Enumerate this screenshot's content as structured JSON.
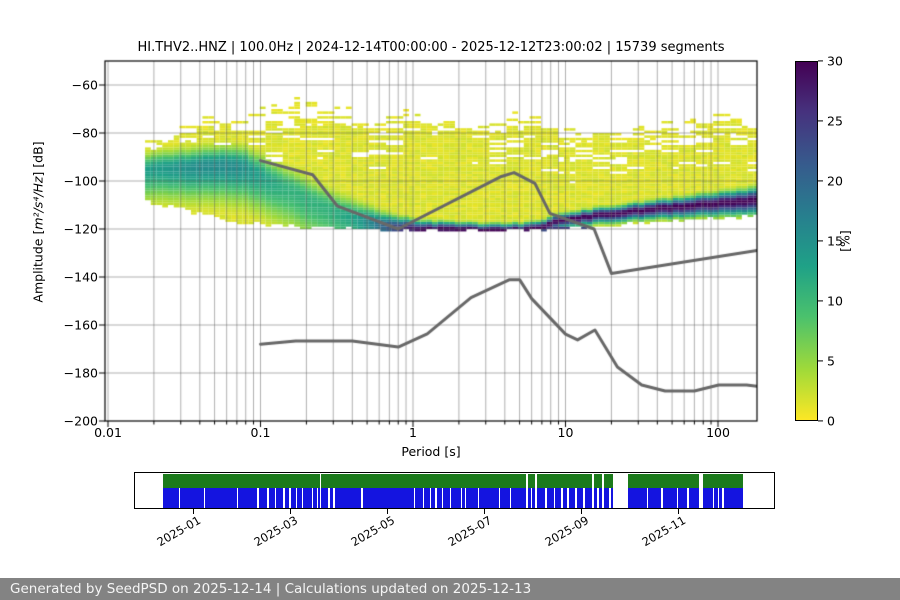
{
  "header": {
    "title": "HI.THV2..HNZ | 100.0Hz | 2024-12-14T00:00:00 - 2025-12-12T23:00:02 | 15739 segments"
  },
  "chart_data": {
    "type": "heatmap",
    "subtype": "probabilistic-power-spectral-density",
    "title": "HI.THV2..HNZ | 100.0Hz | 2024-12-14T00:00:00 - 2025-12-12T23:00:02 | 15739 segments",
    "xlabel": "Period [s]",
    "ylabel": "Amplitude [m²/s⁴/Hz] [dB]",
    "ylabel_parts": [
      "Amplitude [",
      "m²/s⁴/Hz",
      "] [dB]"
    ],
    "x_scale": "log",
    "xlim": [
      0.0096,
      180
    ],
    "ylim": [
      -200,
      -50
    ],
    "grid": true,
    "x_ticks": [
      {
        "value": 0.01,
        "label": "0.01"
      },
      {
        "value": 0.1,
        "label": "0.1"
      },
      {
        "value": 1,
        "label": "1"
      },
      {
        "value": 10,
        "label": "10"
      },
      {
        "value": 100,
        "label": "100"
      }
    ],
    "y_ticks": [
      {
        "value": -60,
        "label": "−60"
      },
      {
        "value": -80,
        "label": "−80"
      },
      {
        "value": -100,
        "label": "−100"
      },
      {
        "value": -120,
        "label": "−120"
      },
      {
        "value": -140,
        "label": "−140"
      },
      {
        "value": -160,
        "label": "−160"
      },
      {
        "value": -180,
        "label": "−180"
      },
      {
        "value": -200,
        "label": "−200"
      }
    ],
    "colorbar": {
      "label": "[%]",
      "ticks": [
        0,
        5,
        10,
        15,
        20,
        25,
        30
      ],
      "range": [
        0,
        30
      ],
      "colormap": "viridis_r"
    },
    "psd_distribution": {
      "period_bins_per_octave": 8,
      "period_range_s": [
        0.0175,
        180
      ],
      "db_bin_width": 1,
      "mode_db": [
        [
          0.0175,
          -95.5
        ],
        [
          0.035,
          -94.5
        ],
        [
          0.055,
          -93.8
        ],
        [
          0.08,
          -95
        ],
        [
          0.1,
          -98
        ],
        [
          0.15,
          -103.5
        ],
        [
          0.22,
          -109
        ],
        [
          0.32,
          -113.5
        ],
        [
          0.5,
          -117.3
        ],
        [
          0.7,
          -119.3
        ],
        [
          1,
          -120.3
        ],
        [
          2,
          -120.8
        ],
        [
          5,
          -120.9
        ],
        [
          7,
          -119.8
        ],
        [
          9,
          -117.2
        ],
        [
          12,
          -115.8
        ],
        [
          18,
          -114.3
        ],
        [
          30,
          -112.8
        ],
        [
          50,
          -111.5
        ],
        [
          80,
          -110.3
        ],
        [
          120,
          -109.3
        ],
        [
          180,
          -108.3
        ]
      ],
      "sigma_db": [
        [
          0.0175,
          4.2
        ],
        [
          0.05,
          4.8
        ],
        [
          0.1,
          5.2
        ],
        [
          0.2,
          5.6
        ],
        [
          0.35,
          5
        ],
        [
          0.5,
          4
        ],
        [
          0.7,
          3
        ],
        [
          1,
          2.2
        ],
        [
          2,
          1.6
        ],
        [
          10,
          1.6
        ],
        [
          30,
          1.9
        ],
        [
          80,
          2.4
        ],
        [
          180,
          3
        ]
      ],
      "peak_percent": [
        [
          0.0175,
          13
        ],
        [
          0.04,
          15.5
        ],
        [
          0.07,
          15.5
        ],
        [
          0.1,
          13
        ],
        [
          0.15,
          11
        ],
        [
          0.28,
          11
        ],
        [
          0.42,
          13
        ],
        [
          0.55,
          17
        ],
        [
          0.7,
          22
        ],
        [
          0.9,
          27
        ],
        [
          1.2,
          30
        ],
        [
          180,
          30
        ]
      ],
      "cloud_top_db": [
        [
          0.0175,
          -88
        ],
        [
          0.028,
          -83
        ],
        [
          0.05,
          -80.5
        ],
        [
          0.1,
          -80
        ],
        [
          0.16,
          -77.5
        ],
        [
          0.25,
          -77
        ],
        [
          0.4,
          -78.5
        ],
        [
          0.7,
          -79
        ],
        [
          1.2,
          -80
        ],
        [
          2.5,
          -81.5
        ],
        [
          4,
          -79.5
        ],
        [
          6,
          -81
        ],
        [
          10,
          -83.5
        ],
        [
          15,
          -84.5
        ],
        [
          25,
          -84.5
        ],
        [
          40,
          -83
        ],
        [
          70,
          -81.5
        ],
        [
          120,
          -80
        ],
        [
          180,
          -80.5
        ]
      ],
      "speckle_top_db": [
        [
          0.0175,
          -84
        ],
        [
          0.03,
          -76
        ],
        [
          0.06,
          -72
        ],
        [
          0.1,
          -71.5
        ],
        [
          0.16,
          -66.5
        ],
        [
          0.22,
          -66
        ],
        [
          0.3,
          -69.5
        ],
        [
          0.5,
          -73.5
        ],
        [
          0.8,
          -71.5
        ],
        [
          1.5,
          -75
        ],
        [
          2.5,
          -77
        ],
        [
          4,
          -73
        ],
        [
          5.5,
          -72.5
        ],
        [
          8,
          -77
        ],
        [
          12,
          -79.5
        ],
        [
          20,
          -79.5
        ],
        [
          35,
          -78.5
        ],
        [
          60,
          -76
        ],
        [
          90,
          -73.5
        ],
        [
          120,
          -72.5
        ],
        [
          160,
          -75.5
        ],
        [
          180,
          -76.5
        ]
      ],
      "cloud_bottom_db": [
        [
          0.0175,
          -109
        ],
        [
          0.03,
          -112
        ],
        [
          0.05,
          -116
        ],
        [
          0.08,
          -118
        ],
        [
          0.13,
          -119
        ],
        [
          0.25,
          -120
        ],
        [
          0.5,
          -120.8
        ],
        [
          1,
          -121.2
        ],
        [
          5,
          -121.2
        ],
        [
          9,
          -120.6
        ],
        [
          14,
          -119.8
        ],
        [
          25,
          -118.6
        ],
        [
          50,
          -117
        ],
        [
          100,
          -116
        ],
        [
          180,
          -115.3
        ]
      ],
      "bottom_ridge": {
        "period_range_s": [
          5,
          17
        ],
        "db": -120.3,
        "sigma_db": 0.95,
        "peak_percent": 26
      }
    },
    "noise_models": {
      "name": "Peterson NHNM / NLNM (acceleration)",
      "color": "#686868",
      "nhnm": [
        [
          0.1,
          -91.5
        ],
        [
          0.22,
          -97.4
        ],
        [
          0.32,
          -110.5
        ],
        [
          0.8,
          -120.0
        ],
        [
          3.8,
          -98.1
        ],
        [
          4.6,
          -96.5
        ],
        [
          6.3,
          -101.0
        ],
        [
          7.9,
          -113.5
        ],
        [
          15.4,
          -120.0
        ],
        [
          20.0,
          -138.5
        ],
        [
          180.0,
          -129.0
        ]
      ],
      "nlnm": [
        [
          0.1,
          -168.0
        ],
        [
          0.17,
          -166.7
        ],
        [
          0.4,
          -166.7
        ],
        [
          0.8,
          -169.2
        ],
        [
          1.24,
          -163.7
        ],
        [
          2.4,
          -148.6
        ],
        [
          4.3,
          -141.1
        ],
        [
          5.0,
          -141.1
        ],
        [
          6.0,
          -149.0
        ],
        [
          10.0,
          -163.8
        ],
        [
          12.0,
          -166.2
        ],
        [
          15.6,
          -162.1
        ],
        [
          21.9,
          -177.5
        ],
        [
          31.6,
          -185.0
        ],
        [
          45.0,
          -187.5
        ],
        [
          70.0,
          -187.5
        ],
        [
          101.0,
          -185.0
        ],
        [
          154.0,
          -185.0
        ],
        [
          180.0,
          -185.5
        ]
      ]
    }
  },
  "timeline": {
    "green_color": "#1b7a1b",
    "blue_color": "#1414e0",
    "coverage": {
      "start_pct": 4.4,
      "end_pct": 95.2
    },
    "labels": [
      {
        "label": "2025-01",
        "pct": 9.27
      },
      {
        "label": "2025-03",
        "pct": 24.4
      },
      {
        "label": "2025-05",
        "pct": 39.5
      },
      {
        "label": "2025-07",
        "pct": 54.6
      },
      {
        "label": "2025-09",
        "pct": 69.7
      },
      {
        "label": "2025-11",
        "pct": 84.9
      }
    ],
    "blue_gaps": [
      [
        6.9,
        0.22
      ],
      [
        10.8,
        0.22
      ],
      [
        16.0,
        0.22
      ],
      [
        19.2,
        0.22
      ],
      [
        20.8,
        0.22
      ],
      [
        22.0,
        0.22
      ],
      [
        23.3,
        0.22
      ],
      [
        24.2,
        0.22
      ],
      [
        25.2,
        0.22
      ],
      [
        26.2,
        0.22
      ],
      [
        27.7,
        0.22
      ],
      [
        28.5,
        0.22
      ],
      [
        30.3,
        0.22
      ],
      [
        31.1,
        0.22
      ],
      [
        35.5,
        0.22
      ],
      [
        43.7,
        0.22
      ],
      [
        45.1,
        0.22
      ],
      [
        46.2,
        0.22
      ],
      [
        47.0,
        0.4
      ],
      [
        48.1,
        0.22
      ],
      [
        49.3,
        0.22
      ],
      [
        51.1,
        0.22
      ],
      [
        51.7,
        0.22
      ],
      [
        53.7,
        0.22
      ],
      [
        57.0,
        0.22
      ],
      [
        58.7,
        0.22
      ],
      [
        62.0,
        0.22
      ],
      [
        64.3,
        0.22
      ],
      [
        65.6,
        0.22
      ],
      [
        66.8,
        0.22
      ],
      [
        67.7,
        0.22
      ],
      [
        69.0,
        0.22
      ],
      [
        70.2,
        0.22
      ],
      [
        72.4,
        0.22
      ],
      [
        74.3,
        0.22
      ],
      [
        80.2,
        0.22
      ],
      [
        82.4,
        0.22
      ],
      [
        84.9,
        0.22
      ],
      [
        86.5,
        0.22
      ],
      [
        90.5,
        0.22
      ],
      [
        91.3,
        0.22
      ],
      [
        92.0,
        0.22
      ]
    ],
    "full_gaps": [
      [
        29.0,
        0.25
      ],
      [
        61.2,
        0.3
      ],
      [
        62.7,
        0.3
      ],
      [
        71.6,
        0.3
      ],
      [
        73.2,
        0.3
      ],
      [
        74.9,
        2.3
      ],
      [
        88.3,
        0.7
      ]
    ]
  },
  "footer": {
    "text": "Generated by SeedPSD on 2025-12-14 | Calculations updated on 2025-12-13",
    "bg": "#838383",
    "fg": "#f5f5f5"
  },
  "colors": {
    "grid": "#9c9c9c",
    "frame": "#000000",
    "background": "#ffffff"
  }
}
